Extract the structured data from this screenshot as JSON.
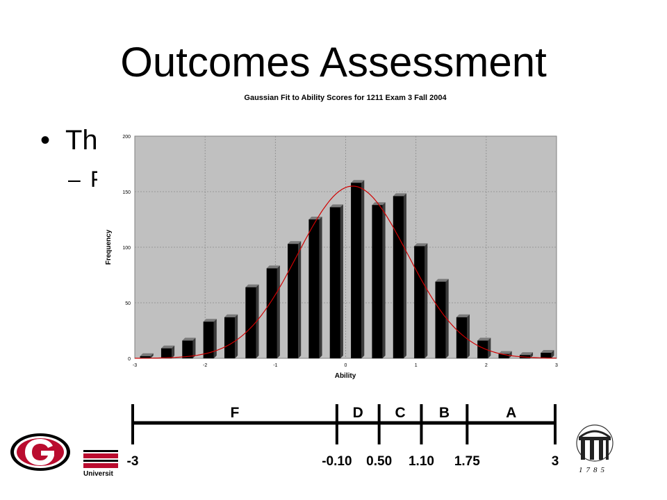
{
  "slide": {
    "title": "Outcomes Assessment",
    "bullet_1": "Th",
    "bullet_2": "F",
    "bullet_marker": "•",
    "sub_marker": "–"
  },
  "chart_data": {
    "type": "bar",
    "title": "Gaussian Fit to Ability Scores for 1211 Exam 3 Fall 2004",
    "xlabel": "Ability",
    "ylabel": "Frequency",
    "xlim": [
      -3,
      3
    ],
    "ylim": [
      0,
      200
    ],
    "xticks": [
      -3,
      -2,
      -1,
      0,
      1,
      2,
      3
    ],
    "yticks": [
      0,
      50,
      100,
      150,
      200
    ],
    "grid": true,
    "bar_color": "#000000",
    "plot_bg": "#c0c0c0",
    "fit_color": "#d00000",
    "bars": {
      "x": [
        -2.85,
        -2.55,
        -2.25,
        -1.95,
        -1.65,
        -1.35,
        -1.05,
        -0.75,
        -0.45,
        -0.15,
        0.15,
        0.45,
        0.75,
        1.05,
        1.35,
        1.65,
        1.95,
        2.25,
        2.55,
        2.85
      ],
      "values": [
        2,
        9,
        16,
        33,
        37,
        64,
        81,
        103,
        125,
        136,
        158,
        138,
        146,
        101,
        69,
        37,
        16,
        4,
        3,
        5
      ]
    },
    "fit": {
      "label": "Gaussian fit",
      "mean": 0.1,
      "sd": 0.78,
      "peak": 155
    }
  },
  "grade_scale": {
    "grades": [
      "F",
      "D",
      "C",
      "B",
      "A"
    ],
    "cutoffs": [
      "-3",
      "-0.10",
      "0.50",
      "1.10",
      "1.75",
      "3"
    ],
    "cutoff_values": [
      -3,
      -0.1,
      0.5,
      1.1,
      1.75,
      3
    ]
  },
  "footer": {
    "university_text": "Universit",
    "seal_year": "1785",
    "brand_red": "#ba0c2f"
  }
}
